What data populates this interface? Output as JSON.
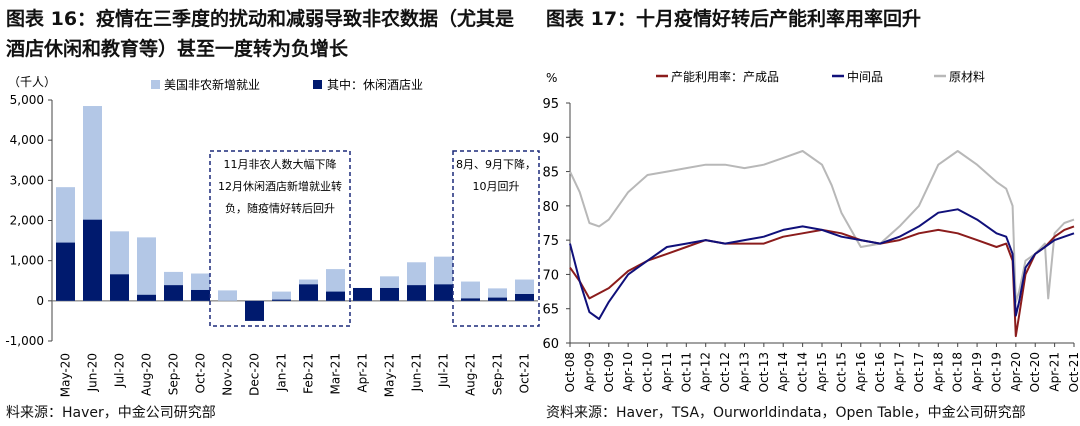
{
  "left": {
    "title": "图表 16：疫情在三季度的扰动和减弱导致非农数据（尤其是酒店休闲和教育等）甚至一度转为负增长",
    "source": "料来源：Haver，中金公司研究部",
    "colors": {
      "total": "#b3c7e6",
      "leisure": "#001a6e",
      "box": "#1c2a7a"
    },
    "chart_data": {
      "type": "bar",
      "unit": "（千人）",
      "categories": [
        "May-20",
        "Jun-20",
        "Jul-20",
        "Aug-20",
        "Sep-20",
        "Oct-20",
        "Nov-20",
        "Dec-20",
        "Jan-21",
        "Feb-21",
        "Mar-21",
        "Apr-21",
        "May-21",
        "Jun-21",
        "Jul-21",
        "Aug-21",
        "Sep-21",
        "Oct-21"
      ],
      "series": [
        {
          "name": "美国非农新增就业",
          "values": [
            2830,
            4850,
            1730,
            1580,
            720,
            680,
            260,
            -300,
            230,
            530,
            790,
            270,
            610,
            960,
            1100,
            480,
            310,
            530
          ]
        },
        {
          "name": "其中：休闲酒店业",
          "values": [
            1450,
            2020,
            660,
            150,
            390,
            270,
            0,
            -500,
            30,
            410,
            230,
            320,
            320,
            390,
            410,
            60,
            80,
            170
          ]
        }
      ],
      "ylim": [
        -1000,
        5000
      ],
      "yticks": [
        -1000,
        0,
        1000,
        2000,
        3000,
        4000,
        5000
      ],
      "ytick_labels": [
        "-1,000",
        "0",
        "1,000",
        "2,000",
        "3,000",
        "4,000",
        "5,000"
      ],
      "annotations": [
        {
          "lines": [
            "11月非农人数大幅下降",
            "12月休闲酒店新增就业转",
            "负，随疫情好转后回升"
          ]
        },
        {
          "lines": [
            "8月、9月下降，",
            "10月回升"
          ]
        }
      ]
    }
  },
  "right": {
    "title": "图表 17：十月疫情好转后产能利率用率回升",
    "source": "资料来源：Haver，TSA，Ourworldindata，Open Table，中金公司研究部",
    "colors": {
      "finished": "#8b1c1c",
      "intermediate": "#10107a",
      "raw": "#b8b8b8"
    },
    "chart_data": {
      "type": "line",
      "unit": "%",
      "ylim": [
        60,
        95
      ],
      "yticks": [
        60,
        65,
        70,
        75,
        80,
        85,
        90,
        95
      ],
      "xlim": [
        "2008-10",
        "2021-10"
      ],
      "xtick_labels": [
        "Oct-08",
        "Apr-09",
        "Oct-09",
        "Apr-10",
        "Oct-10",
        "Apr-11",
        "Oct-11",
        "Apr-12",
        "Oct-12",
        "Apr-13",
        "Oct-13",
        "Apr-14",
        "Oct-14",
        "Apr-15",
        "Oct-15",
        "Apr-16",
        "Oct-16",
        "Apr-17",
        "Oct-17",
        "Apr-18",
        "Oct-18",
        "Apr-19",
        "Oct-19",
        "Apr-20",
        "Oct-20",
        "Apr-21",
        "Oct-21"
      ],
      "series": [
        {
          "name": "产能利用率：产成品",
          "points": [
            [
              "2008-10",
              71
            ],
            [
              "2009-01",
              69
            ],
            [
              "2009-04",
              66.5
            ],
            [
              "2009-10",
              68
            ],
            [
              "2010-04",
              70.5
            ],
            [
              "2010-10",
              72
            ],
            [
              "2011-04",
              73
            ],
            [
              "2011-10",
              74
            ],
            [
              "2012-04",
              75
            ],
            [
              "2012-10",
              74.5
            ],
            [
              "2013-04",
              74.5
            ],
            [
              "2013-10",
              74.5
            ],
            [
              "2014-04",
              75.5
            ],
            [
              "2014-10",
              76
            ],
            [
              "2015-04",
              76.5
            ],
            [
              "2015-10",
              76
            ],
            [
              "2016-04",
              75
            ],
            [
              "2016-10",
              74.5
            ],
            [
              "2017-04",
              75
            ],
            [
              "2017-10",
              76
            ],
            [
              "2018-04",
              76.5
            ],
            [
              "2018-10",
              76
            ],
            [
              "2019-04",
              75
            ],
            [
              "2019-10",
              74
            ],
            [
              "2020-01",
              74.5
            ],
            [
              "2020-03",
              72
            ],
            [
              "2020-04",
              61
            ],
            [
              "2020-05",
              64
            ],
            [
              "2020-07",
              70
            ],
            [
              "2020-10",
              73
            ],
            [
              "2021-01",
              74
            ],
            [
              "2021-04",
              75.5
            ],
            [
              "2021-07",
              76.5
            ],
            [
              "2021-10",
              77
            ]
          ]
        },
        {
          "name": "中间品",
          "points": [
            [
              "2008-10",
              74.5
            ],
            [
              "2009-01",
              69
            ],
            [
              "2009-04",
              64.5
            ],
            [
              "2009-07",
              63.5
            ],
            [
              "2009-10",
              66
            ],
            [
              "2010-04",
              70
            ],
            [
              "2010-10",
              72
            ],
            [
              "2011-04",
              74
            ],
            [
              "2011-10",
              74.5
            ],
            [
              "2012-04",
              75
            ],
            [
              "2012-10",
              74.5
            ],
            [
              "2013-04",
              75
            ],
            [
              "2013-10",
              75.5
            ],
            [
              "2014-04",
              76.5
            ],
            [
              "2014-10",
              77
            ],
            [
              "2015-04",
              76.5
            ],
            [
              "2015-10",
              75.5
            ],
            [
              "2016-04",
              75
            ],
            [
              "2016-10",
              74.5
            ],
            [
              "2017-04",
              75.5
            ],
            [
              "2017-10",
              77
            ],
            [
              "2018-04",
              79
            ],
            [
              "2018-10",
              79.5
            ],
            [
              "2019-04",
              78
            ],
            [
              "2019-10",
              76
            ],
            [
              "2020-01",
              75.5
            ],
            [
              "2020-03",
              73
            ],
            [
              "2020-04",
              64
            ],
            [
              "2020-05",
              66
            ],
            [
              "2020-07",
              71
            ],
            [
              "2020-10",
              73
            ],
            [
              "2021-01",
              74
            ],
            [
              "2021-04",
              75
            ],
            [
              "2021-07",
              75.5
            ],
            [
              "2021-10",
              76
            ]
          ]
        },
        {
          "name": "原材料",
          "points": [
            [
              "2008-10",
              85
            ],
            [
              "2009-01",
              82
            ],
            [
              "2009-04",
              77.5
            ],
            [
              "2009-07",
              77
            ],
            [
              "2009-10",
              78
            ],
            [
              "2010-04",
              82
            ],
            [
              "2010-10",
              84.5
            ],
            [
              "2011-04",
              85
            ],
            [
              "2011-10",
              85.5
            ],
            [
              "2012-04",
              86
            ],
            [
              "2012-10",
              86
            ],
            [
              "2013-04",
              85.5
            ],
            [
              "2013-10",
              86
            ],
            [
              "2014-04",
              87
            ],
            [
              "2014-10",
              88
            ],
            [
              "2015-04",
              86
            ],
            [
              "2015-07",
              83
            ],
            [
              "2015-10",
              79
            ],
            [
              "2016-04",
              74
            ],
            [
              "2016-10",
              74.5
            ],
            [
              "2017-04",
              77
            ],
            [
              "2017-10",
              80
            ],
            [
              "2018-04",
              86
            ],
            [
              "2018-10",
              88
            ],
            [
              "2019-04",
              86
            ],
            [
              "2019-10",
              83.5
            ],
            [
              "2020-01",
              82.5
            ],
            [
              "2020-03",
              80
            ],
            [
              "2020-04",
              66
            ],
            [
              "2020-05",
              67.5
            ],
            [
              "2020-07",
              72
            ],
            [
              "2020-10",
              73
            ],
            [
              "2021-01",
              74.5
            ],
            [
              "2021-02",
              66.5
            ],
            [
              "2021-04",
              76
            ],
            [
              "2021-07",
              77.5
            ],
            [
              "2021-10",
              78
            ]
          ]
        }
      ]
    }
  }
}
